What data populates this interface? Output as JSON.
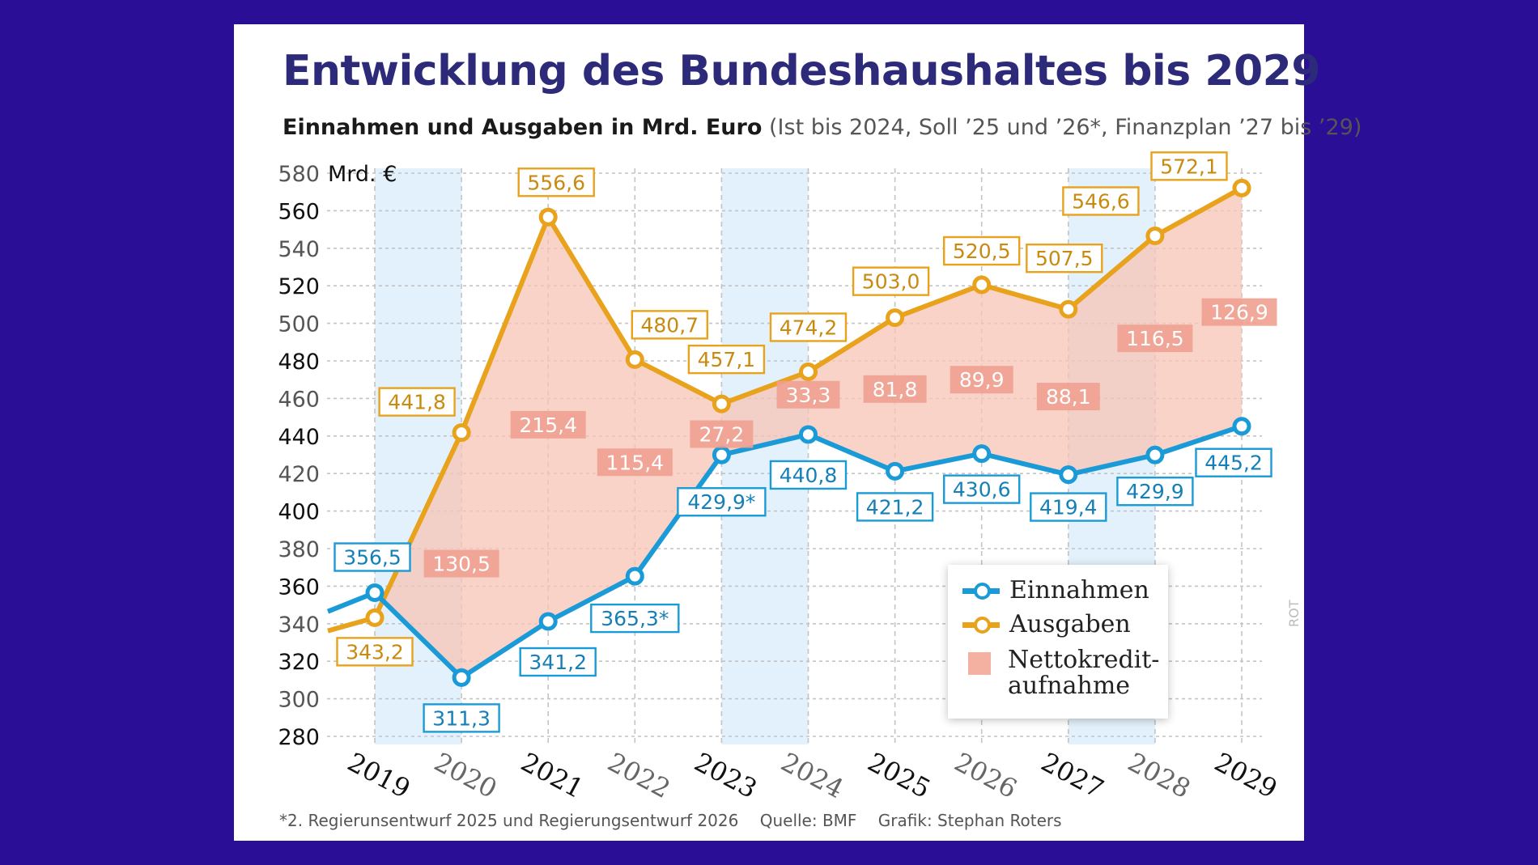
{
  "title": "Entwicklung des Bundeshaushaltes bis 2029",
  "subtitle_bold": "Einnahmen und Ausgaben in Mrd. Euro",
  "subtitle_light": "(Ist bis 2024, Soll ’25 und ’26*, Finanzplan ’27 bis ’29)",
  "unit_label": "Mrd. €",
  "footnote": "*2. Regierunsentwurf 2025 und Regierungsentwurf 2026",
  "source": "Quelle: BMF",
  "credit": "Grafik: Stephan Roters",
  "watermark": "ROT",
  "legend": {
    "income": "Einnahmen",
    "expenses": "Ausgaben",
    "borrowing": "Nettokredit-\naufnahme"
  },
  "colors": {
    "income": "#1a9bd7",
    "expenses": "#e8a21c",
    "borrowing_fill": "#f7c4b6",
    "borrowing_label": "#f0a090",
    "band": "#e2f1fb",
    "title": "#2e2a7a",
    "background": "#2a0f96"
  },
  "chart_data": {
    "type": "line",
    "title": "Entwicklung des Bundeshaushaltes bis 2029",
    "ylabel": "Mrd. €",
    "ylim": [
      280,
      580
    ],
    "yticks": [
      280,
      300,
      320,
      340,
      360,
      380,
      400,
      420,
      440,
      460,
      480,
      500,
      520,
      540,
      560,
      580
    ],
    "categories": [
      "2019",
      "2020",
      "2021",
      "2022",
      "2023",
      "2024",
      "2025",
      "2026",
      "2027",
      "2028",
      "2029"
    ],
    "series": [
      {
        "name": "Einnahmen",
        "values": [
          356.5,
          311.3,
          341.2,
          365.3,
          429.9,
          440.8,
          421.2,
          430.6,
          419.4,
          429.9,
          445.2
        ],
        "labels": [
          "356,5",
          "311,3",
          "341,2",
          "365,3*",
          "429,9*",
          "440,8",
          "421,2",
          "430,6",
          "419,4",
          "429,9",
          "445,2"
        ]
      },
      {
        "name": "Ausgaben",
        "values": [
          343.2,
          441.8,
          556.6,
          480.7,
          457.1,
          474.2,
          503.0,
          520.5,
          507.5,
          546.6,
          572.1
        ],
        "labels": [
          "343,2",
          "441,8",
          "556,6",
          "480,7",
          "457,1",
          "474,2",
          "503,0",
          "520,5",
          "507,5",
          "546,6",
          "572,1"
        ]
      },
      {
        "name": "Nettokreditaufnahme",
        "values": [
          null,
          130.5,
          215.4,
          115.4,
          27.2,
          33.3,
          81.8,
          89.9,
          88.1,
          116.5,
          126.9
        ],
        "labels": [
          "",
          "130,5",
          "215,4",
          "115,4",
          "27,2",
          "33,3",
          "81,8",
          "89,9",
          "88,1",
          "116,5",
          "126,9"
        ]
      }
    ]
  }
}
